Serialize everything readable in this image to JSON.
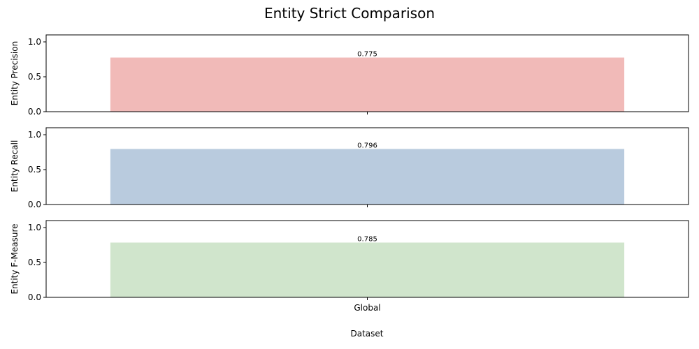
{
  "chart_data": {
    "type": "bar",
    "title": "Entity Strict Comparison",
    "xlabel": "Dataset",
    "categories": [
      "Global"
    ],
    "panels": [
      {
        "ylabel": "Entity Precision",
        "values": [
          0.775
        ],
        "data_labels": [
          "0.775"
        ],
        "color": "#f1bab8",
        "ylim": [
          0,
          1.1
        ],
        "yticks": [
          0.0,
          0.5,
          1.0
        ]
      },
      {
        "ylabel": "Entity Recall",
        "values": [
          0.796
        ],
        "data_labels": [
          "0.796"
        ],
        "color": "#b9cbde",
        "ylim": [
          0,
          1.1
        ],
        "yticks": [
          0.0,
          0.5,
          1.0
        ]
      },
      {
        "ylabel": "Entity F-Measure",
        "values": [
          0.785
        ],
        "data_labels": [
          "0.785"
        ],
        "color": "#d0e5cc",
        "ylim": [
          0,
          1.1
        ],
        "yticks": [
          0.0,
          0.5,
          1.0
        ]
      }
    ],
    "grid": false,
    "legend": "none"
  }
}
